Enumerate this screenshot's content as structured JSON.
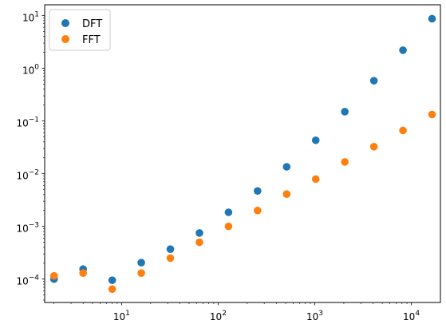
{
  "chart_data": {
    "type": "scatter",
    "title": "",
    "xlabel": "",
    "ylabel": "",
    "xscale": "log",
    "yscale": "log",
    "xlim": [
      1.6,
      20000
    ],
    "ylim": [
      3.6e-05,
      16
    ],
    "grid": false,
    "legend_position": "top-left",
    "x_ticks": [
      {
        "value": 10,
        "base": "10",
        "exp": "1"
      },
      {
        "value": 100,
        "base": "10",
        "exp": "2"
      },
      {
        "value": 1000,
        "base": "10",
        "exp": "3"
      },
      {
        "value": 10000,
        "base": "10",
        "exp": "4"
      }
    ],
    "y_ticks": [
      {
        "value": 0.0001,
        "base": "10",
        "exp": "−4"
      },
      {
        "value": 0.001,
        "base": "10",
        "exp": "−3"
      },
      {
        "value": 0.01,
        "base": "10",
        "exp": "−2"
      },
      {
        "value": 0.1,
        "base": "10",
        "exp": "−1"
      },
      {
        "value": 1,
        "base": "10",
        "exp": "0"
      },
      {
        "value": 10,
        "base": "10",
        "exp": "1"
      }
    ],
    "x": [
      2,
      4,
      8,
      16,
      32,
      64,
      128,
      256,
      512,
      1024,
      2048,
      4096,
      8192,
      16384
    ],
    "series": [
      {
        "name": "DFT",
        "color": "#1f77b4",
        "values": [
          0.0001,
          0.000155,
          9.5e-05,
          0.000205,
          0.00037,
          0.00075,
          0.00185,
          0.0047,
          0.0135,
          0.043,
          0.15,
          0.58,
          2.2,
          8.7
        ]
      },
      {
        "name": "FFT",
        "color": "#ff7f0e",
        "values": [
          0.000115,
          0.00013,
          6.45e-05,
          0.00013,
          0.00025,
          0.0005,
          0.001,
          0.002,
          0.0041,
          0.0079,
          0.0167,
          0.0325,
          0.066,
          0.133
        ]
      }
    ]
  }
}
